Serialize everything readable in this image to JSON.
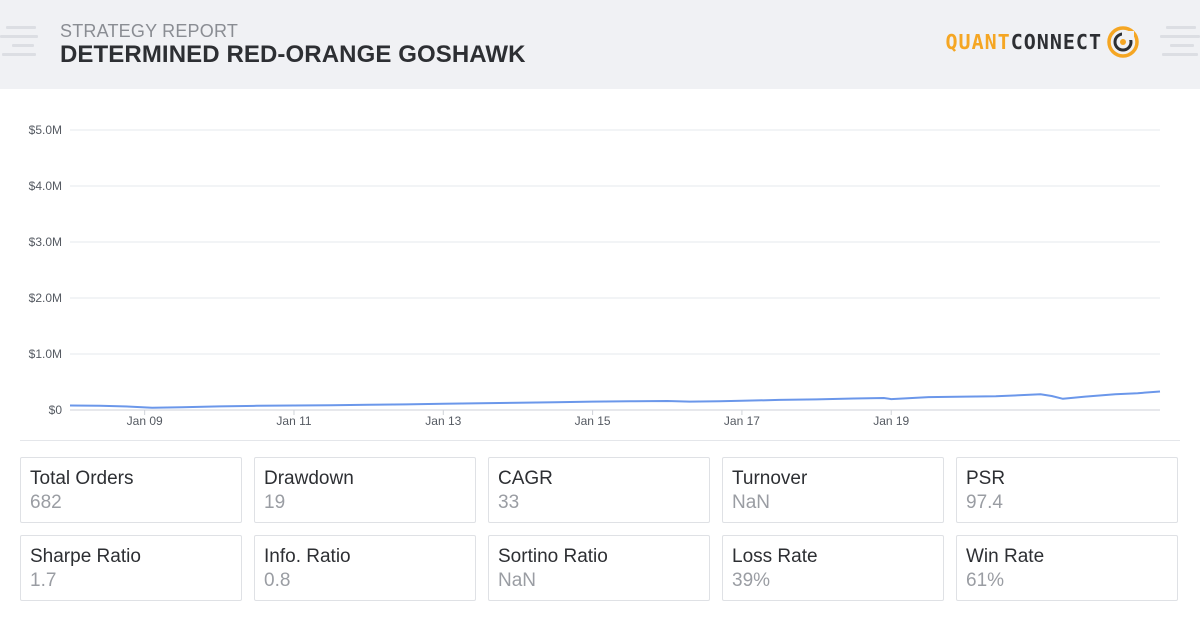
{
  "header": {
    "subtitle": "STRATEGY REPORT",
    "title": "DETERMINED RED-ORANGE GOSHAWK",
    "logo_part1": "QUANT",
    "logo_part2": "CONNECT",
    "logo_icon": "quantconnect-ring-icon"
  },
  "colors": {
    "line": "#6b97ea",
    "brand_orange": "#f5a623",
    "grid": "#e6e8ec",
    "text_dark": "#2d2f33",
    "text_muted": "#9a9da3"
  },
  "chart_data": {
    "type": "line",
    "title": "",
    "xlabel": "",
    "ylabel": "",
    "ylim": [
      0,
      5000000
    ],
    "yticks": [
      {
        "value": 5000000,
        "label": "$5.0M"
      },
      {
        "value": 4000000,
        "label": "$4.0M"
      },
      {
        "value": 3000000,
        "label": "$3.0M"
      },
      {
        "value": 2000000,
        "label": "$2.0M"
      },
      {
        "value": 1000000,
        "label": "$1.0M"
      },
      {
        "value": 0,
        "label": "$0"
      }
    ],
    "xlim": [
      2008.0,
      2022.6
    ],
    "xticks": [
      {
        "value": 2009.0,
        "label": "Jan 09"
      },
      {
        "value": 2011.0,
        "label": "Jan 11"
      },
      {
        "value": 2013.0,
        "label": "Jan 13"
      },
      {
        "value": 2015.0,
        "label": "Jan 15"
      },
      {
        "value": 2017.0,
        "label": "Jan 17"
      },
      {
        "value": 2019.0,
        "label": "Jan 19"
      }
    ],
    "grid": true,
    "series": [
      {
        "x": [
          2008.0,
          2008.4,
          2008.8,
          2009.1,
          2009.5,
          2010.0,
          2010.5,
          2011.0,
          2011.5,
          2012.0,
          2012.5,
          2013.0,
          2013.5,
          2014.0,
          2014.5,
          2015.0,
          2015.5,
          2016.0,
          2016.3,
          2016.7,
          2017.0,
          2017.5,
          2018.0,
          2018.5,
          2018.9,
          2019.0,
          2019.5,
          2020.0,
          2020.4,
          2021.0,
          2021.15,
          2021.3,
          2021.6,
          2022.0,
          2022.3,
          2022.6
        ],
        "y": [
          80000,
          75000,
          60000,
          40000,
          50000,
          65000,
          75000,
          80000,
          85000,
          95000,
          100000,
          110000,
          120000,
          130000,
          140000,
          150000,
          155000,
          160000,
          150000,
          155000,
          165000,
          180000,
          190000,
          205000,
          215000,
          195000,
          230000,
          240000,
          245000,
          280000,
          250000,
          200000,
          240000,
          280000,
          300000,
          330000
        ]
      }
    ]
  },
  "stats": [
    {
      "label": "Total Orders",
      "value": "682"
    },
    {
      "label": "Drawdown",
      "value": "19"
    },
    {
      "label": "CAGR",
      "value": "33"
    },
    {
      "label": "Turnover",
      "value": "NaN"
    },
    {
      "label": "PSR",
      "value": "97.4"
    },
    {
      "label": "Sharpe Ratio",
      "value": "1.7"
    },
    {
      "label": "Info. Ratio",
      "value": "0.8"
    },
    {
      "label": "Sortino Ratio",
      "value": "NaN"
    },
    {
      "label": "Loss Rate",
      "value": "39%"
    },
    {
      "label": "Win Rate",
      "value": "61%"
    }
  ]
}
